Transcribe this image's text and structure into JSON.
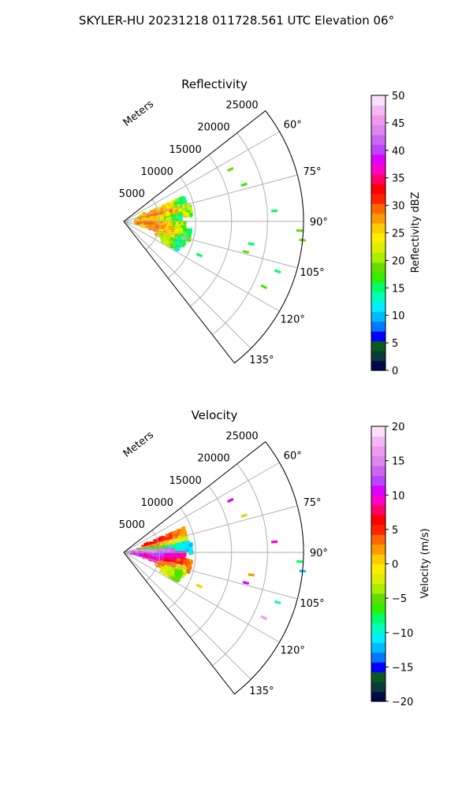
{
  "figure": {
    "suptitle": "SKYLER-HU  20231218  011728.561 UTC Elevation 06°"
  },
  "chart_data": [
    {
      "type": "heatmap",
      "projection": "polar-sector",
      "title": "Reflectivity",
      "r_label": "Meters",
      "r_ticks": [
        "5000",
        "10000",
        "15000",
        "20000",
        "25000"
      ],
      "r_max": 25000,
      "theta_range_deg": [
        52,
        142
      ],
      "theta_ticks": [
        "60°",
        "75°",
        "90°",
        "105°",
        "120°",
        "135°"
      ],
      "grid": true,
      "colorbar": {
        "label": "Reflectivity dBZ",
        "range": [
          0,
          50
        ],
        "ticks": [
          "0",
          "5",
          "10",
          "15",
          "20",
          "25",
          "30",
          "35",
          "40",
          "45",
          "50"
        ],
        "colors": [
          "#000a4a",
          "#0b3a3a",
          "#0a5a1e",
          "#0000ff",
          "#0077ff",
          "#00bbff",
          "#00eeff",
          "#00ffbb",
          "#00ff66",
          "#33ee00",
          "#66dd00",
          "#aaee00",
          "#ddee00",
          "#ffee00",
          "#ffcc00",
          "#ff9900",
          "#ff6600",
          "#ff2200",
          "#ff0000",
          "#ff0066",
          "#ff00cc",
          "#dd00ff",
          "#bb44ff",
          "#cc66ee",
          "#dd88ee",
          "#ee99ee",
          "#f4b8f4",
          "#fbe0fb"
        ]
      },
      "echoes": [
        {
          "theta": 73,
          "r0": 2000,
          "r1": 9000,
          "min": 12,
          "max": 28
        },
        {
          "theta": 80,
          "r0": 1500,
          "r1": 9500,
          "min": 14,
          "max": 30
        },
        {
          "theta": 86,
          "r0": 1000,
          "r1": 8000,
          "min": 12,
          "max": 27
        },
        {
          "theta": 95,
          "r0": 1000,
          "r1": 8500,
          "min": 14,
          "max": 30
        },
        {
          "theta": 102,
          "r0": 2000,
          "r1": 9500,
          "min": 12,
          "max": 29
        },
        {
          "theta": 108,
          "r0": 4500,
          "r1": 9000,
          "min": 10,
          "max": 27
        },
        {
          "theta": 113,
          "r0": 5500,
          "r1": 8500,
          "min": 9,
          "max": 22
        }
      ],
      "cells": [
        {
          "theta": 64,
          "r": 16500,
          "v": 18
        },
        {
          "theta": 73,
          "r": 17500,
          "v": 17
        },
        {
          "theta": 86,
          "r": 21000,
          "v": 16
        },
        {
          "theta": 93,
          "r": 24500,
          "v": 18
        },
        {
          "theta": 96,
          "r": 25000,
          "v": 19
        },
        {
          "theta": 100,
          "r": 18000,
          "v": 16
        },
        {
          "theta": 104,
          "r": 17500,
          "v": 18
        },
        {
          "theta": 108,
          "r": 22500,
          "v": 16
        },
        {
          "theta": 115,
          "r": 21500,
          "v": 17
        },
        {
          "theta": 114,
          "r": 11500,
          "v": 16
        }
      ]
    },
    {
      "type": "heatmap",
      "projection": "polar-sector",
      "title": "Velocity",
      "r_label": "Meters",
      "r_ticks": [
        "5000",
        "10000",
        "15000",
        "20000",
        "25000"
      ],
      "r_max": 25000,
      "theta_range_deg": [
        52,
        142
      ],
      "theta_ticks": [
        "60°",
        "75°",
        "90°",
        "105°",
        "120°",
        "135°"
      ],
      "grid": true,
      "colorbar": {
        "label": "Velocity (m/s)",
        "range": [
          -20,
          20
        ],
        "ticks": [
          "−20",
          "−15",
          "−10",
          "−5",
          "0",
          "5",
          "10",
          "15",
          "20"
        ],
        "colors": [
          "#000a4a",
          "#0b3a3a",
          "#0a5a1e",
          "#0000ff",
          "#0077ff",
          "#00bbff",
          "#00eeff",
          "#00ffbb",
          "#00ff66",
          "#33ee00",
          "#66dd00",
          "#aaee00",
          "#ddee00",
          "#ffee00",
          "#ffcc00",
          "#ff9900",
          "#ff6600",
          "#ff2200",
          "#ff0000",
          "#ff0066",
          "#ff00cc",
          "#dd00ff",
          "#bb44ff",
          "#cc66ee",
          "#dd88ee",
          "#ee99ee",
          "#f4b8f4",
          "#fbe0fb"
        ]
      },
      "echoes": [
        {
          "theta": 73,
          "r0": 2000,
          "r1": 9000,
          "min": 0,
          "max": 6
        },
        {
          "theta": 80,
          "r0": 1500,
          "r1": 9000,
          "min": -4,
          "max": 3
        },
        {
          "theta": 86,
          "r0": 1000,
          "r1": 9500,
          "min": -13,
          "max": -7
        },
        {
          "theta": 90,
          "r0": 500,
          "r1": 7000,
          "min": 12,
          "max": 16
        },
        {
          "theta": 95,
          "r0": 1000,
          "r1": 8500,
          "min": 7,
          "max": 12
        },
        {
          "theta": 102,
          "r0": 2000,
          "r1": 9500,
          "min": 0,
          "max": 9
        },
        {
          "theta": 108,
          "r0": 4500,
          "r1": 9000,
          "min": -6,
          "max": 4
        },
        {
          "theta": 113,
          "r0": 5500,
          "r1": 8500,
          "min": -8,
          "max": -2
        }
      ],
      "cells": [
        {
          "theta": 64,
          "r": 16500,
          "v": 11
        },
        {
          "theta": 73,
          "r": 17500,
          "v": -3
        },
        {
          "theta": 86,
          "r": 21000,
          "v": 9
        },
        {
          "theta": 93,
          "r": 24500,
          "v": -8
        },
        {
          "theta": 96,
          "r": 25000,
          "v": -12
        },
        {
          "theta": 100,
          "r": 18000,
          "v": 2
        },
        {
          "theta": 104,
          "r": 17500,
          "v": 10
        },
        {
          "theta": 108,
          "r": 22500,
          "v": -10
        },
        {
          "theta": 115,
          "r": 21500,
          "v": 16
        },
        {
          "theta": 114,
          "r": 11500,
          "v": 1
        }
      ]
    }
  ]
}
